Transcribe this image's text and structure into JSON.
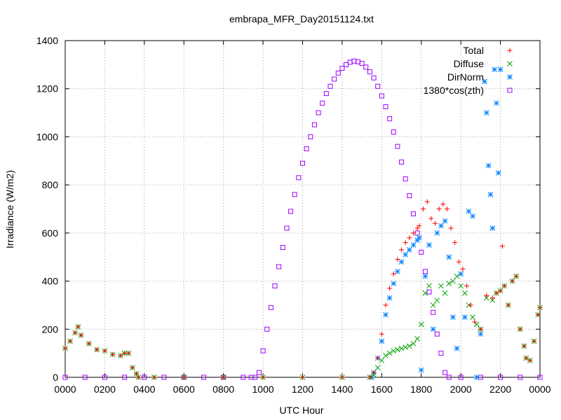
{
  "chart_data": {
    "type": "scatter",
    "title": "embrapa_MFR_Day20151124.txt",
    "xlabel": "UTC Hour",
    "ylabel": "Irradiance (W/m2)",
    "xlim": [
      0,
      24
    ],
    "ylim": [
      0,
      1400
    ],
    "x_ticks": [
      {
        "value": 0,
        "label": "0000"
      },
      {
        "value": 2,
        "label": "0200"
      },
      {
        "value": 4,
        "label": "0400"
      },
      {
        "value": 6,
        "label": "0600"
      },
      {
        "value": 8,
        "label": "0800"
      },
      {
        "value": 10,
        "label": "1000"
      },
      {
        "value": 12,
        "label": "1200"
      },
      {
        "value": 14,
        "label": "1400"
      },
      {
        "value": 16,
        "label": "1600"
      },
      {
        "value": 18,
        "label": "1800"
      },
      {
        "value": 20,
        "label": "2000"
      },
      {
        "value": 22,
        "label": "2200"
      },
      {
        "value": 24,
        "label": "0000"
      }
    ],
    "y_ticks": [
      0,
      200,
      400,
      600,
      800,
      1000,
      1200,
      1400
    ],
    "grid": true,
    "legend_position": "top-right",
    "series": [
      {
        "name": "Total",
        "marker": "plus",
        "color": "#ff0000",
        "points": [
          [
            0.0,
            120
          ],
          [
            0.25,
            150
          ],
          [
            0.5,
            185
          ],
          [
            0.65,
            210
          ],
          [
            0.8,
            175
          ],
          [
            1.2,
            140
          ],
          [
            1.6,
            115
          ],
          [
            2.0,
            110
          ],
          [
            2.4,
            95
          ],
          [
            2.8,
            90
          ],
          [
            3.0,
            100
          ],
          [
            3.2,
            100
          ],
          [
            3.4,
            40
          ],
          [
            3.6,
            15
          ],
          [
            3.7,
            0
          ],
          [
            4.5,
            0
          ],
          [
            6.0,
            0
          ],
          [
            8.0,
            0
          ],
          [
            10.0,
            0
          ],
          [
            12.0,
            0
          ],
          [
            14.0,
            0
          ],
          [
            15.4,
            0
          ],
          [
            15.6,
            20
          ],
          [
            15.8,
            80
          ],
          [
            16.0,
            180
          ],
          [
            16.2,
            300
          ],
          [
            16.4,
            370
          ],
          [
            16.6,
            430
          ],
          [
            16.8,
            490
          ],
          [
            17.0,
            530
          ],
          [
            17.2,
            560
          ],
          [
            17.4,
            580
          ],
          [
            17.6,
            600
          ],
          [
            17.8,
            620
          ],
          [
            17.9,
            630
          ],
          [
            18.1,
            700
          ],
          [
            18.3,
            730
          ],
          [
            18.5,
            660
          ],
          [
            18.7,
            640
          ],
          [
            18.9,
            700
          ],
          [
            19.1,
            720
          ],
          [
            19.3,
            700
          ],
          [
            19.5,
            620
          ],
          [
            19.7,
            560
          ],
          [
            19.9,
            480
          ],
          [
            20.1,
            450
          ],
          [
            20.3,
            380
          ],
          [
            20.5,
            300
          ],
          [
            20.7,
            230
          ],
          [
            21.0,
            200
          ],
          [
            21.3,
            340
          ],
          [
            21.6,
            330
          ],
          [
            21.8,
            350
          ],
          [
            22.0,
            360
          ],
          [
            22.1,
            545
          ],
          [
            22.2,
            380
          ],
          [
            22.4,
            300
          ],
          [
            22.6,
            400
          ],
          [
            22.8,
            420
          ],
          [
            23.0,
            200
          ],
          [
            23.2,
            130
          ],
          [
            23.3,
            80
          ],
          [
            23.5,
            70
          ],
          [
            23.7,
            150
          ],
          [
            23.9,
            260
          ],
          [
            24.0,
            290
          ]
        ]
      },
      {
        "name": "Diffuse",
        "marker": "cross",
        "color": "#00a000",
        "points": [
          [
            0.0,
            120
          ],
          [
            0.25,
            150
          ],
          [
            0.5,
            185
          ],
          [
            0.65,
            210
          ],
          [
            0.8,
            175
          ],
          [
            1.2,
            140
          ],
          [
            1.6,
            115
          ],
          [
            2.0,
            110
          ],
          [
            2.4,
            95
          ],
          [
            2.8,
            90
          ],
          [
            3.0,
            100
          ],
          [
            3.2,
            100
          ],
          [
            3.4,
            40
          ],
          [
            3.6,
            15
          ],
          [
            3.7,
            0
          ],
          [
            4.5,
            0
          ],
          [
            6.0,
            0
          ],
          [
            8.0,
            0
          ],
          [
            10.0,
            0
          ],
          [
            12.0,
            0
          ],
          [
            14.0,
            0
          ],
          [
            15.4,
            0
          ],
          [
            15.6,
            10
          ],
          [
            15.8,
            40
          ],
          [
            16.0,
            70
          ],
          [
            16.2,
            90
          ],
          [
            16.4,
            100
          ],
          [
            16.6,
            110
          ],
          [
            16.8,
            115
          ],
          [
            17.0,
            120
          ],
          [
            17.2,
            125
          ],
          [
            17.4,
            130
          ],
          [
            17.6,
            140
          ],
          [
            17.8,
            160
          ],
          [
            18.0,
            220
          ],
          [
            18.2,
            350
          ],
          [
            18.4,
            380
          ],
          [
            18.6,
            300
          ],
          [
            18.8,
            320
          ],
          [
            19.0,
            380
          ],
          [
            19.2,
            350
          ],
          [
            19.4,
            390
          ],
          [
            19.6,
            400
          ],
          [
            19.8,
            420
          ],
          [
            20.0,
            380
          ],
          [
            20.2,
            350
          ],
          [
            20.4,
            300
          ],
          [
            20.6,
            250
          ],
          [
            20.8,
            220
          ],
          [
            21.0,
            200
          ],
          [
            21.3,
            330
          ],
          [
            21.6,
            320
          ],
          [
            21.8,
            350
          ],
          [
            22.0,
            360
          ],
          [
            22.2,
            380
          ],
          [
            22.4,
            300
          ],
          [
            22.6,
            400
          ],
          [
            22.8,
            420
          ],
          [
            23.0,
            200
          ],
          [
            23.2,
            130
          ],
          [
            23.3,
            80
          ],
          [
            23.5,
            70
          ],
          [
            23.7,
            150
          ],
          [
            23.9,
            260
          ],
          [
            24.0,
            290
          ]
        ]
      },
      {
        "name": "DirNorm",
        "marker": "star",
        "color": "#0080ff",
        "points": [
          [
            15.5,
            0
          ],
          [
            15.6,
            20
          ],
          [
            15.8,
            80
          ],
          [
            16.0,
            150
          ],
          [
            16.2,
            260
          ],
          [
            16.4,
            330
          ],
          [
            16.6,
            390
          ],
          [
            16.8,
            440
          ],
          [
            17.0,
            480
          ],
          [
            17.2,
            510
          ],
          [
            17.4,
            530
          ],
          [
            17.6,
            550
          ],
          [
            17.8,
            570
          ],
          [
            17.9,
            580
          ],
          [
            18.0,
            30
          ],
          [
            18.2,
            420
          ],
          [
            18.4,
            550
          ],
          [
            18.6,
            200
          ],
          [
            18.8,
            600
          ],
          [
            19.0,
            630
          ],
          [
            19.2,
            650
          ],
          [
            19.4,
            500
          ],
          [
            19.6,
            250
          ],
          [
            19.8,
            120
          ],
          [
            20.0,
            430
          ],
          [
            20.2,
            250
          ],
          [
            20.4,
            690
          ],
          [
            20.6,
            670
          ],
          [
            20.8,
            0
          ],
          [
            21.0,
            180
          ],
          [
            21.2,
            1230
          ],
          [
            21.3,
            1100
          ],
          [
            21.4,
            880
          ],
          [
            21.5,
            760
          ],
          [
            21.6,
            620
          ],
          [
            21.7,
            1280
          ],
          [
            21.8,
            1140
          ],
          [
            21.9,
            850
          ],
          [
            22.0,
            1280
          ]
        ]
      },
      {
        "name": "1380*cos(zth)",
        "marker": "square",
        "color": "#a000ff",
        "points": [
          [
            0.0,
            0
          ],
          [
            1.0,
            0
          ],
          [
            2.0,
            0
          ],
          [
            3.0,
            0
          ],
          [
            4.0,
            0
          ],
          [
            5.0,
            0
          ],
          [
            6.0,
            0
          ],
          [
            7.0,
            0
          ],
          [
            8.0,
            0
          ],
          [
            9.0,
            0
          ],
          [
            9.4,
            0
          ],
          [
            9.6,
            0
          ],
          [
            9.8,
            20
          ],
          [
            10.0,
            110
          ],
          [
            10.2,
            200
          ],
          [
            10.4,
            290
          ],
          [
            10.6,
            380
          ],
          [
            10.8,
            460
          ],
          [
            11.0,
            540
          ],
          [
            11.2,
            620
          ],
          [
            11.4,
            690
          ],
          [
            11.6,
            760
          ],
          [
            11.8,
            830
          ],
          [
            12.0,
            890
          ],
          [
            12.2,
            950
          ],
          [
            12.4,
            1000
          ],
          [
            12.6,
            1050
          ],
          [
            12.8,
            1100
          ],
          [
            13.0,
            1140
          ],
          [
            13.2,
            1180
          ],
          [
            13.4,
            1210
          ],
          [
            13.6,
            1240
          ],
          [
            13.8,
            1265
          ],
          [
            14.0,
            1285
          ],
          [
            14.2,
            1300
          ],
          [
            14.4,
            1310
          ],
          [
            14.6,
            1315
          ],
          [
            14.8,
            1312
          ],
          [
            15.0,
            1305
          ],
          [
            15.2,
            1290
          ],
          [
            15.4,
            1270
          ],
          [
            15.6,
            1245
          ],
          [
            15.8,
            1210
          ],
          [
            16.0,
            1170
          ],
          [
            16.2,
            1125
          ],
          [
            16.4,
            1075
          ],
          [
            16.6,
            1020
          ],
          [
            16.8,
            960
          ],
          [
            17.0,
            895
          ],
          [
            17.2,
            825
          ],
          [
            17.4,
            755
          ],
          [
            17.6,
            680
          ],
          [
            17.8,
            600
          ],
          [
            18.0,
            520
          ],
          [
            18.2,
            440
          ],
          [
            18.4,
            355
          ],
          [
            18.6,
            270
          ],
          [
            18.8,
            180
          ],
          [
            19.0,
            100
          ],
          [
            19.2,
            20
          ],
          [
            19.4,
            0
          ],
          [
            20.0,
            0
          ],
          [
            21.0,
            0
          ],
          [
            22.0,
            0
          ],
          [
            23.0,
            0
          ],
          [
            24.0,
            0
          ]
        ]
      }
    ]
  }
}
